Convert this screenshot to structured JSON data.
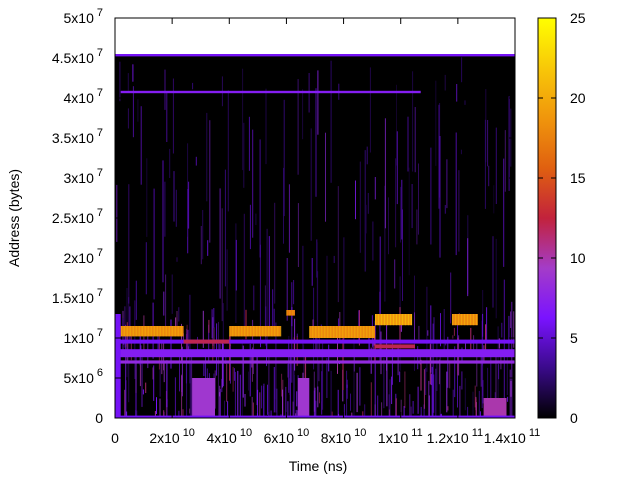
{
  "chart_data": {
    "type": "heatmap",
    "title": "",
    "xlabel": "Time (ns)",
    "ylabel": "Address (bytes)",
    "xlim": [
      0,
      140000000000
    ],
    "ylim": [
      0,
      50000000
    ],
    "data_extent": {
      "x": [
        0,
        140000000000
      ],
      "y": [
        0,
        45500000
      ]
    },
    "background_value": 0,
    "x_ticks": [
      {
        "value": 0,
        "mant": "0",
        "exp": ""
      },
      {
        "value": 20000000000,
        "mant": "2x10",
        "exp": "10"
      },
      {
        "value": 40000000000,
        "mant": "4x10",
        "exp": "10"
      },
      {
        "value": 60000000000,
        "mant": "6x10",
        "exp": "10"
      },
      {
        "value": 80000000000,
        "mant": "8x10",
        "exp": "10"
      },
      {
        "value": 100000000000,
        "mant": "1x10",
        "exp": "11"
      },
      {
        "value": 120000000000,
        "mant": "1.2x10",
        "exp": "11"
      },
      {
        "value": 140000000000,
        "mant": "1.4x10",
        "exp": "11"
      }
    ],
    "y_ticks": [
      {
        "value": 0,
        "mant": "0",
        "exp": ""
      },
      {
        "value": 5000000,
        "mant": "5x10",
        "exp": "6"
      },
      {
        "value": 10000000,
        "mant": "1x10",
        "exp": "7"
      },
      {
        "value": 15000000,
        "mant": "1.5x10",
        "exp": "7"
      },
      {
        "value": 20000000,
        "mant": "2x10",
        "exp": "7"
      },
      {
        "value": 25000000,
        "mant": "2.5x10",
        "exp": "7"
      },
      {
        "value": 30000000,
        "mant": "3x10",
        "exp": "7"
      },
      {
        "value": 35000000,
        "mant": "3.5x10",
        "exp": "7"
      },
      {
        "value": 40000000,
        "mant": "4x10",
        "exp": "7"
      },
      {
        "value": 45000000,
        "mant": "4.5x10",
        "exp": "7"
      },
      {
        "value": 50000000,
        "mant": "5x10",
        "exp": "7"
      }
    ],
    "colorbar": {
      "range": [
        0,
        25
      ],
      "ticks": [
        "0",
        "5",
        "10",
        "15",
        "20",
        "25"
      ],
      "palette": [
        "#000000",
        "#3a0a8a",
        "#7a13ff",
        "#a43cc8",
        "#c2223c",
        "#e06010",
        "#f0960c",
        "#f8c808",
        "#ffff00"
      ]
    },
    "grid": false,
    "legend": "colorbar-right",
    "features": [
      {
        "kind": "band",
        "x": [
          0,
          140000000000
        ],
        "y": [
          45200000,
          45500000
        ],
        "value": 6
      },
      {
        "kind": "band",
        "x": [
          2000000000,
          107000000000
        ],
        "y": [
          40600000,
          40900000
        ],
        "value": 7
      },
      {
        "kind": "band",
        "x": [
          0,
          140000000000
        ],
        "y": [
          6800000,
          7200000
        ],
        "value": 8
      },
      {
        "kind": "band",
        "x": [
          0,
          140000000000
        ],
        "y": [
          7600000,
          8600000
        ],
        "value": 7
      },
      {
        "kind": "band",
        "x": [
          0,
          140000000000
        ],
        "y": [
          9300000,
          9800000
        ],
        "value": 6
      },
      {
        "kind": "block",
        "x": [
          2000000000,
          24000000000
        ],
        "y": [
          10200000,
          11500000
        ],
        "value": 18
      },
      {
        "kind": "block",
        "x": [
          40000000000,
          58000000000
        ],
        "y": [
          10200000,
          11500000
        ],
        "value": 18
      },
      {
        "kind": "block",
        "x": [
          68000000000,
          91000000000
        ],
        "y": [
          10000000,
          11500000
        ],
        "value": 18
      },
      {
        "kind": "block",
        "x": [
          91000000000,
          104000000000
        ],
        "y": [
          11600000,
          13000000
        ],
        "value": 19
      },
      {
        "kind": "block",
        "x": [
          118000000000,
          127000000000
        ],
        "y": [
          11600000,
          13000000
        ],
        "value": 18
      },
      {
        "kind": "block",
        "x": [
          60000000000,
          63000000000
        ],
        "y": [
          12800000,
          13500000
        ],
        "value": 17
      },
      {
        "kind": "block",
        "x": [
          24000000000,
          40000000000
        ],
        "y": [
          9300000,
          9800000
        ],
        "value": 12
      },
      {
        "kind": "block",
        "x": [
          91000000000,
          105000000000
        ],
        "y": [
          8700000,
          9200000
        ],
        "value": 12
      },
      {
        "kind": "block",
        "x": [
          27000000000,
          35000000000
        ],
        "y": [
          200000,
          5000000
        ],
        "value": 9
      },
      {
        "kind": "block",
        "x": [
          64000000000,
          68000000000
        ],
        "y": [
          200000,
          5000000
        ],
        "value": 9
      },
      {
        "kind": "block",
        "x": [
          129000000000,
          137000000000
        ],
        "y": [
          200000,
          2500000
        ],
        "value": 10
      },
      {
        "kind": "band",
        "x": [
          0,
          140000000000
        ],
        "y": [
          0,
          300000
        ],
        "value": 6
      },
      {
        "kind": "block",
        "x": [
          0,
          2000000000
        ],
        "y": [
          0,
          13000000
        ],
        "value": 6
      }
    ]
  }
}
